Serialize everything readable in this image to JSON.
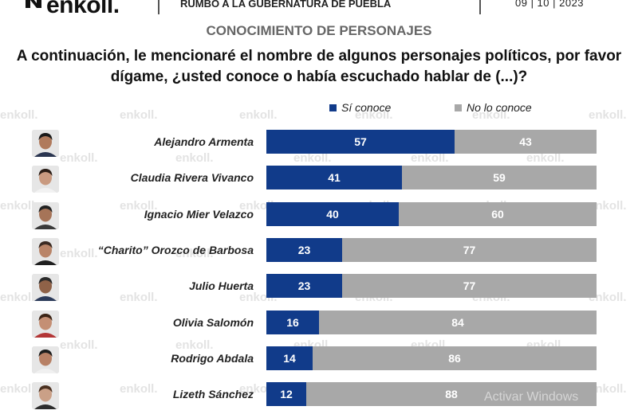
{
  "header": {
    "logo": "enkoll.",
    "title": "RUMBO A LA GUBERNATURA DE PUEBLA",
    "date": "09 | 10 | 2023"
  },
  "subtitle": "CONOCIMIENTO DE PERSONAJES",
  "question": "A continuación, le mencionaré el nombre de algunos personajes políticos, por favor dígame, ¿usted conoce o había escuchado hablar de (...)?",
  "watermark": "enkoll.",
  "overlay": "Activar Windows",
  "colors": {
    "yes": "#113b8a",
    "no": "#a8a8a8"
  },
  "chart_data": {
    "type": "bar",
    "stacked": true,
    "orientation": "horizontal",
    "categories": [
      "Alejandro Armenta",
      "Claudia Rivera Vivanco",
      "Ignacio Mier Velazco",
      "“Charito” Orozco de Barbosa",
      "Julio Huerta",
      "Olivia Salomón",
      "Rodrigo Abdala",
      "Lizeth Sánchez"
    ],
    "series": [
      {
        "name": "Sí conoce",
        "values": [
          57,
          41,
          40,
          23,
          23,
          16,
          14,
          12
        ]
      },
      {
        "name": "No lo conoce",
        "values": [
          43,
          59,
          60,
          77,
          77,
          84,
          86,
          88
        ]
      }
    ],
    "xlim": [
      0,
      100
    ],
    "legend": "top",
    "grid": false
  }
}
